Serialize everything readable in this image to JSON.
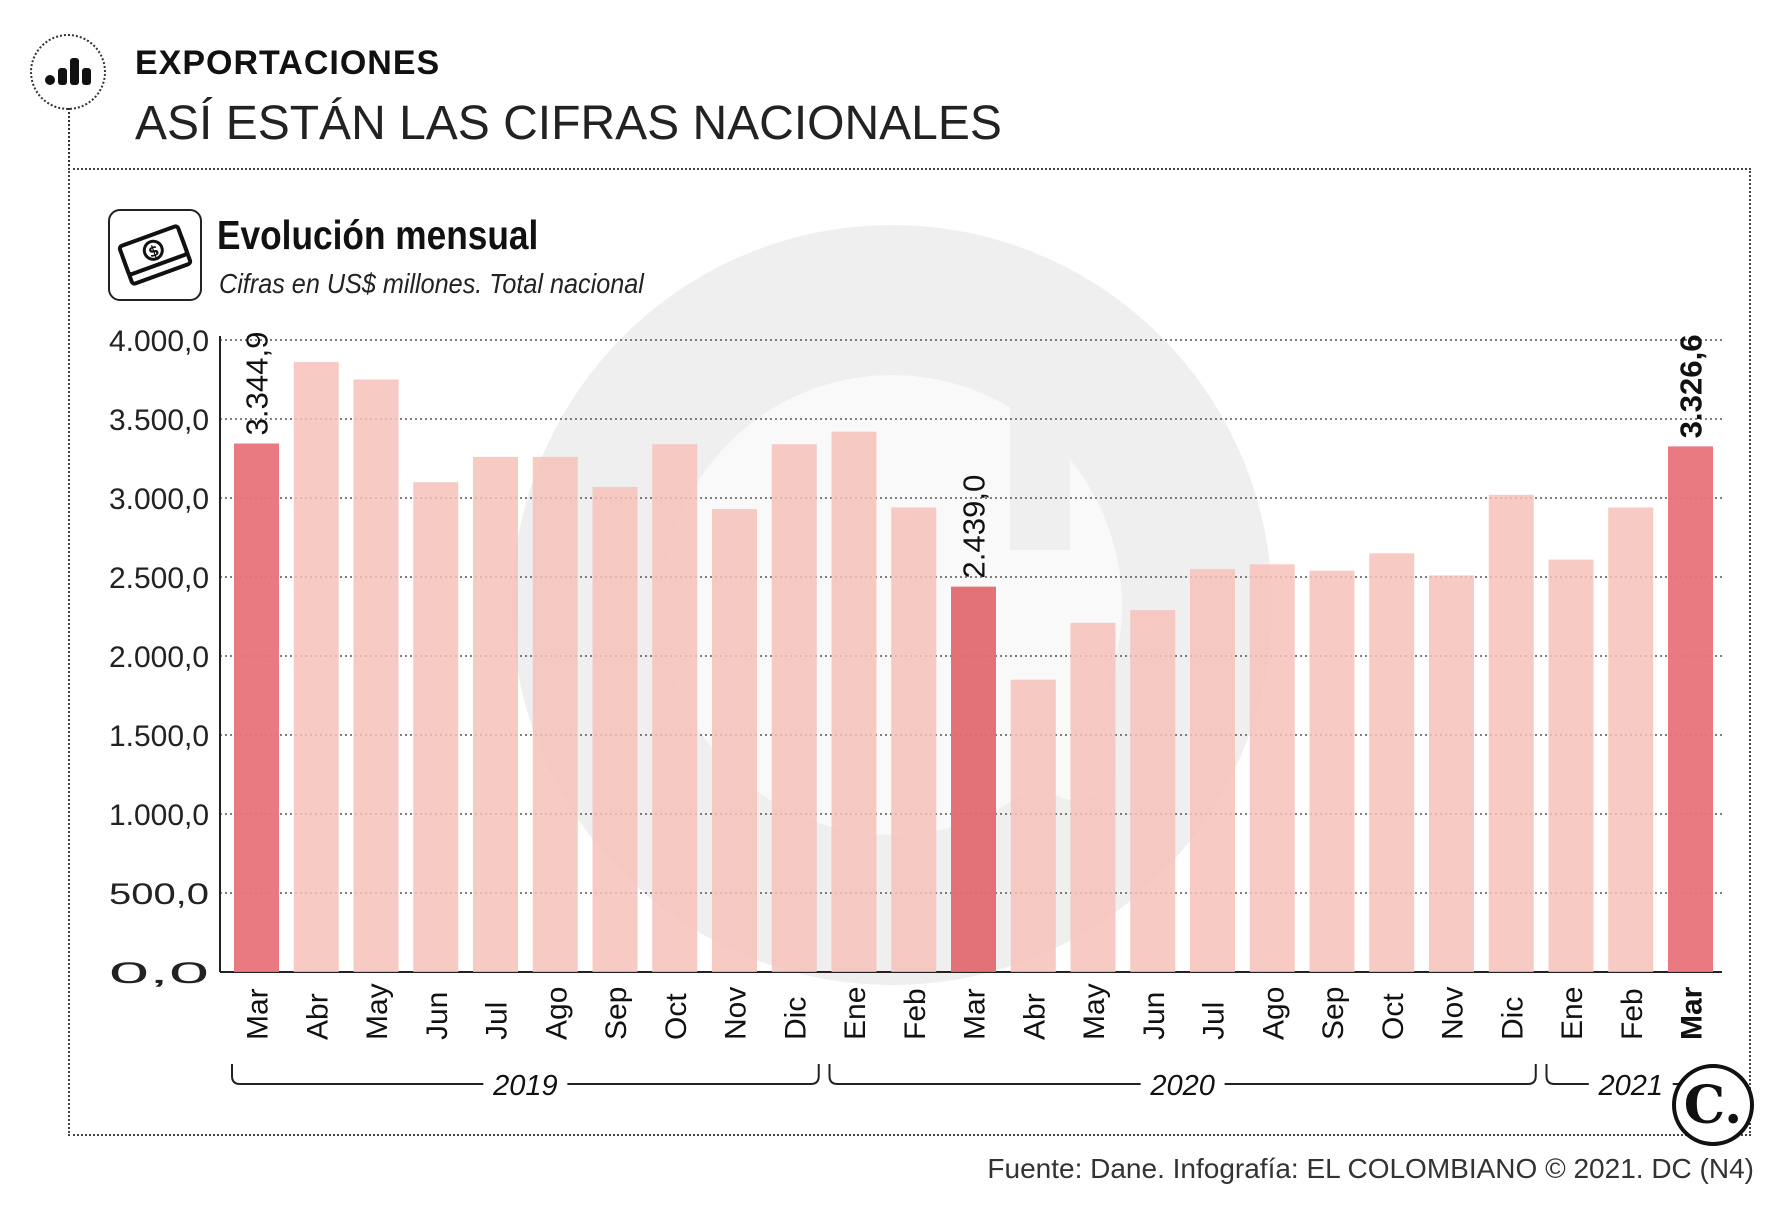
{
  "header": {
    "section": "EXPORTACIONES",
    "headline": "ASÍ ESTÁN LAS CIFRAS NACIONALES",
    "icon": "bar-chart-icon"
  },
  "chart_data": {
    "type": "bar",
    "title": "Evolución mensual",
    "subtitle": "Cifras en US$ millones. Total nacional",
    "ylim": [
      0,
      4000
    ],
    "yticks": [
      "4.000,0",
      "3.500,0",
      "3.000,0",
      "2.500,0",
      "2.000,0",
      "1.500,0",
      "1.000,0",
      "500,0",
      "0,0"
    ],
    "ytick_values": [
      4000,
      3500,
      3000,
      2500,
      2000,
      1500,
      1000,
      500,
      0
    ],
    "categories": [
      "Mar",
      "Abr",
      "May",
      "Jun",
      "Jul",
      "Ago",
      "Sep",
      "Oct",
      "Nov",
      "Dic",
      "Ene",
      "Feb",
      "Mar",
      "Abr",
      "May",
      "Jun",
      "Jul",
      "Ago",
      "Sep",
      "Oct",
      "Nov",
      "Dic",
      "Ene",
      "Feb",
      "Mar"
    ],
    "values": [
      3344.9,
      3860,
      3750,
      3100,
      3260,
      3260,
      3070,
      3340,
      2930,
      3340,
      3420,
      2940,
      2439.0,
      1850,
      2210,
      2290,
      2550,
      2580,
      2540,
      2650,
      2510,
      3020,
      2610,
      2940,
      3326.6
    ],
    "highlight": [
      0,
      12,
      24
    ],
    "bold_label": 24,
    "bar_labels": [
      {
        "index": 0,
        "text": "3.344,9",
        "bold": false
      },
      {
        "index": 12,
        "text": "2.439,0",
        "bold": false
      },
      {
        "index": 24,
        "text": "3.326,6",
        "bold": true
      }
    ],
    "years": [
      {
        "label": "2019",
        "start": 0,
        "end": 9
      },
      {
        "label": "2020",
        "start": 10,
        "end": 21
      },
      {
        "label": "2021",
        "start": 22,
        "end": 24
      }
    ],
    "colors": {
      "normal": "#f6c1b8",
      "highlight": "#e9737a",
      "highlight_dark": "#e06a70",
      "grid": "#555555"
    },
    "grid": true
  },
  "footer": {
    "source": "Fuente: Dane. Infografía: EL COLOMBIANO © 2021. DC (N4)",
    "logo_letter": "C."
  }
}
